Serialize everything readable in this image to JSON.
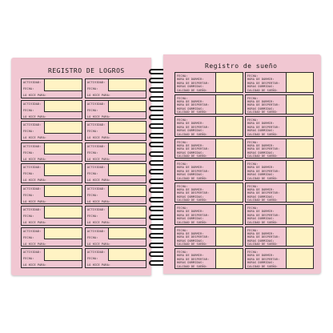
{
  "left_page": {
    "title": "REGISTRO DE LOGROS",
    "cell_labels": {
      "activity": "ACTIVIDAD:",
      "date": "FECHA:",
      "did_it_for": "LO HICE PARA:"
    }
  },
  "right_page": {
    "title": "Registro de sueño",
    "cell_labels": {
      "date": "FECHA:",
      "sleep_time": "HORA DE DORMIR:",
      "wake_time": "HORA DE DESPERTAR:",
      "hours_slept": "HORAS DORMIDAS:",
      "quality": "CALIDAD DE SUEÑO:"
    }
  },
  "colors": {
    "page_pink": "#f1c7d2",
    "field_yellow": "#fff3c4",
    "ink": "#2a2a2a",
    "spiral": "#1c1c1c"
  }
}
